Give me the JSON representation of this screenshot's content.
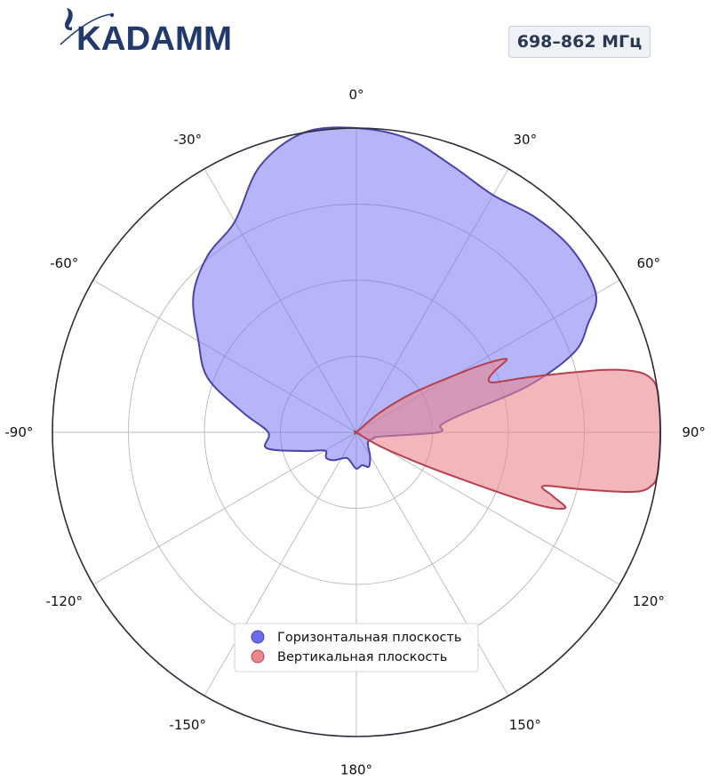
{
  "header": {
    "logo_text": "KADAMM",
    "band_label": "698–862 МГц"
  },
  "chart_data": {
    "type": "polar",
    "angle_labels": [
      "0°",
      "30°",
      "60°",
      "90°",
      "120°",
      "150°",
      "180°",
      "-150°",
      "-120°",
      "-90°",
      "-60°",
      "-30°"
    ],
    "radial_rings": [
      0.25,
      0.5,
      0.75,
      1.0
    ],
    "r_range": [
      0,
      1
    ],
    "grid": true,
    "legend_position": "bottom-center",
    "series": [
      {
        "name": "Горизонтальная плоскость",
        "color": "#6c6cf0",
        "edge": "#4a44aa",
        "angles": [
          -180,
          -170,
          -160,
          -150,
          -140,
          -130,
          -120,
          -110,
          -100,
          -90,
          -80,
          -70,
          -60,
          -50,
          -40,
          -30,
          -20,
          -10,
          0,
          10,
          20,
          30,
          40,
          50,
          60,
          65,
          70,
          75,
          80,
          85,
          90,
          100,
          110,
          120,
          130,
          140,
          150,
          160,
          170
        ],
        "values": [
          0.12,
          0.1,
          0.09,
          0.1,
          0.12,
          0.13,
          0.12,
          0.18,
          0.3,
          0.29,
          0.38,
          0.52,
          0.6,
          0.7,
          0.76,
          0.8,
          0.93,
          1.0,
          1.0,
          0.98,
          0.93,
          0.9,
          0.92,
          0.93,
          0.91,
          0.84,
          0.76,
          0.58,
          0.36,
          0.28,
          0.27,
          0.08,
          0.06,
          0.05,
          0.05,
          0.06,
          0.09,
          0.12,
          0.11
        ]
      },
      {
        "name": "Вертикальная плоскость",
        "color": "#e9868e",
        "edge": "#b5404e",
        "angles": [
          -180,
          -90,
          20,
          30,
          40,
          50,
          55,
          60,
          62,
          64,
          66,
          68,
          70,
          72,
          74,
          76,
          78,
          80,
          82,
          84,
          86,
          88,
          90,
          92,
          94,
          96,
          98,
          100,
          102,
          104,
          106,
          108,
          110,
          112,
          115,
          120,
          130,
          140,
          150,
          160,
          170
        ],
        "values": [
          0,
          0,
          0,
          0,
          0,
          0.1,
          0.22,
          0.38,
          0.48,
          0.55,
          0.5,
          0.47,
          0.48,
          0.58,
          0.7,
          0.85,
          0.95,
          0.99,
          1.0,
          1.0,
          1.0,
          1.0,
          1.0,
          1.0,
          1.0,
          1.0,
          1.0,
          0.99,
          0.94,
          0.78,
          0.64,
          0.68,
          0.73,
          0.62,
          0.3,
          0.1,
          0,
          0,
          0,
          0,
          0
        ]
      }
    ]
  }
}
